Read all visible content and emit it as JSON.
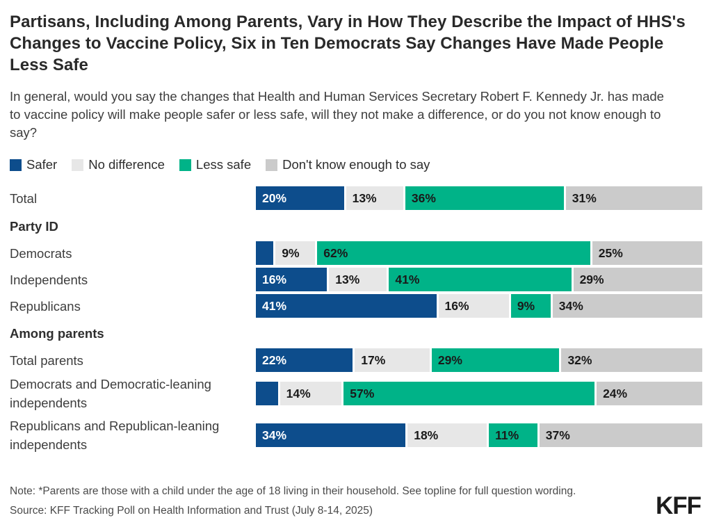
{
  "title": "Partisans, Including Among Parents, Vary in How They Describe the Impact of HHS's Changes to Vaccine Policy, Six in Ten Democrats Say Changes Have Made People Less Safe",
  "subtitle": "In general, would you say the changes that Health and Human Services Secretary Robert F. Kennedy Jr. has made to vaccine policy will make people safer or less safe, will they not make a difference, or do you not know enough to say?",
  "note": "Note: *Parents are those with a child under the age of 18 living in their household. See topline for full question wording.",
  "source": "Source: KFF Tracking Poll on Health Information and Trust (July 8-14, 2025)",
  "logo": "KFF",
  "chart_data": {
    "type": "bar",
    "orientation": "horizontal",
    "stacked": true,
    "value_suffix": "%",
    "axis_range": [
      0,
      100
    ],
    "grid": false,
    "legend_position": "top",
    "series": [
      {
        "name": "Safer",
        "color": "#0D4D8C",
        "text_color": "#ffffff"
      },
      {
        "name": "No difference",
        "color": "#E7E7E7",
        "text_color": "#1a1a1a"
      },
      {
        "name": "Less safe",
        "color": "#00B388",
        "text_color": "#1a1a1a"
      },
      {
        "name": "Don't know enough to say",
        "color": "#CBCBCB",
        "text_color": "#1a1a1a"
      }
    ],
    "rows": [
      {
        "kind": "bar",
        "label": "Total",
        "values": [
          20,
          13,
          36,
          31
        ],
        "hidden_value_labels": []
      },
      {
        "kind": "section",
        "label": "Party ID"
      },
      {
        "kind": "bar",
        "label": "Democrats",
        "values": [
          4,
          9,
          62,
          25
        ],
        "hidden_value_labels": [
          0
        ]
      },
      {
        "kind": "bar",
        "label": "Independents",
        "values": [
          16,
          13,
          41,
          29
        ],
        "hidden_value_labels": []
      },
      {
        "kind": "bar",
        "label": "Republicans",
        "values": [
          41,
          16,
          9,
          34
        ],
        "hidden_value_labels": []
      },
      {
        "kind": "section",
        "label": "Among parents"
      },
      {
        "kind": "bar",
        "label": "Total parents",
        "values": [
          22,
          17,
          29,
          32
        ],
        "hidden_value_labels": []
      },
      {
        "kind": "bar",
        "label": "Democrats and Democratic-leaning independents",
        "values": [
          5,
          14,
          57,
          24
        ],
        "hidden_value_labels": [
          0
        ],
        "two_line": true
      },
      {
        "kind": "bar",
        "label": "Republicans and Republican-leaning independents",
        "values": [
          34,
          18,
          11,
          37
        ],
        "hidden_value_labels": [],
        "two_line": true
      }
    ]
  }
}
